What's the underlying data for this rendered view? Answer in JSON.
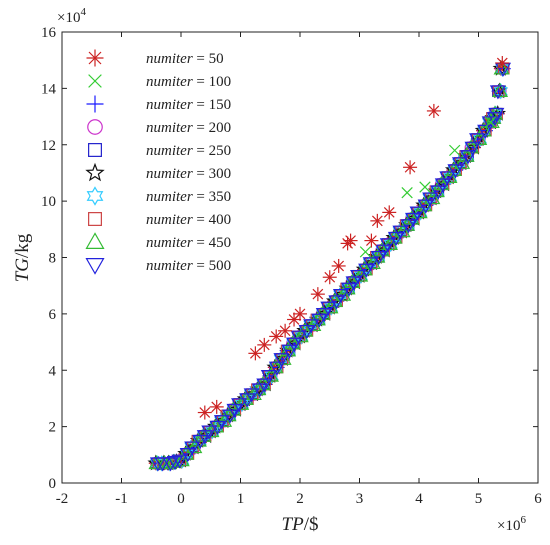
{
  "chart_data": {
    "type": "scatter",
    "xlabel_italic": "TP",
    "xlabel_unit": "/$",
    "ylabel_italic": "TG",
    "ylabel_unit": "/kg",
    "x_multiplier_label": "×10",
    "x_multiplier_exp": "6",
    "y_multiplier_label": "×10",
    "y_multiplier_exp": "4",
    "xlim": [
      -2,
      6
    ],
    "ylim": [
      0,
      16
    ],
    "x_ticks": [
      "-2",
      "-1",
      "0",
      "1",
      "2",
      "3",
      "4",
      "5",
      "6"
    ],
    "y_ticks": [
      "0",
      "2",
      "4",
      "6",
      "8",
      "10",
      "12",
      "14",
      "16"
    ],
    "legend_position": "top-left",
    "legend_var": "numiter",
    "series": [
      {
        "name": "numiter = 50",
        "value_label": "= 50",
        "marker": "asterisk",
        "color": "#cc2222"
      },
      {
        "name": "numiter = 100",
        "value_label": "= 100",
        "marker": "x",
        "color": "#33cc33"
      },
      {
        "name": "numiter = 150",
        "value_label": "= 150",
        "marker": "plus",
        "color": "#1a1aff"
      },
      {
        "name": "numiter = 200",
        "value_label": "= 200",
        "marker": "circle",
        "color": "#cc33cc"
      },
      {
        "name": "numiter = 250",
        "value_label": "= 250",
        "marker": "square",
        "color": "#2222cc"
      },
      {
        "name": "numiter = 300",
        "value_label": "= 300",
        "marker": "star",
        "color": "#111111"
      },
      {
        "name": "numiter = 350",
        "value_label": "= 350",
        "marker": "hexagram",
        "color": "#33ccff"
      },
      {
        "name": "numiter = 400",
        "value_label": "= 400",
        "marker": "square",
        "color": "#cc4444"
      },
      {
        "name": "numiter = 450",
        "value_label": "= 450",
        "marker": "triangle-up",
        "color": "#33bb33"
      },
      {
        "name": "numiter = 500",
        "value_label": "= 500",
        "marker": "triangle-down",
        "color": "#2222dd"
      }
    ],
    "main_curve": [
      [
        -0.4,
        0.7
      ],
      [
        -0.2,
        0.7
      ],
      [
        0.0,
        0.8
      ],
      [
        0.3,
        1.5
      ],
      [
        0.6,
        2.0
      ],
      [
        1.0,
        2.8
      ],
      [
        1.4,
        3.5
      ],
      [
        1.8,
        4.7
      ],
      [
        2.0,
        5.2
      ],
      [
        2.4,
        6.0
      ],
      [
        2.8,
        6.9
      ],
      [
        3.2,
        7.8
      ],
      [
        3.6,
        8.7
      ],
      [
        4.0,
        9.6
      ],
      [
        4.4,
        10.6
      ],
      [
        4.8,
        11.6
      ],
      [
        5.0,
        12.2
      ],
      [
        5.2,
        12.8
      ],
      [
        5.3,
        13.1
      ],
      [
        5.4,
        14.7
      ]
    ],
    "outliers_50": [
      [
        0.4,
        2.5
      ],
      [
        0.6,
        2.7
      ],
      [
        1.25,
        4.6
      ],
      [
        1.4,
        4.9
      ],
      [
        1.6,
        5.2
      ],
      [
        1.75,
        5.4
      ],
      [
        1.9,
        5.8
      ],
      [
        2.0,
        6.0
      ],
      [
        2.3,
        6.7
      ],
      [
        2.5,
        7.3
      ],
      [
        2.65,
        7.7
      ],
      [
        2.8,
        8.5
      ],
      [
        2.85,
        8.6
      ],
      [
        3.2,
        8.6
      ],
      [
        3.3,
        9.3
      ],
      [
        3.5,
        9.6
      ],
      [
        3.85,
        11.2
      ],
      [
        4.25,
        13.2
      ],
      [
        5.4,
        14.9
      ]
    ],
    "outliers_100": [
      [
        3.1,
        8.2
      ],
      [
        3.8,
        10.3
      ],
      [
        4.1,
        10.5
      ],
      [
        4.6,
        11.8
      ],
      [
        5.2,
        12.8
      ]
    ]
  }
}
